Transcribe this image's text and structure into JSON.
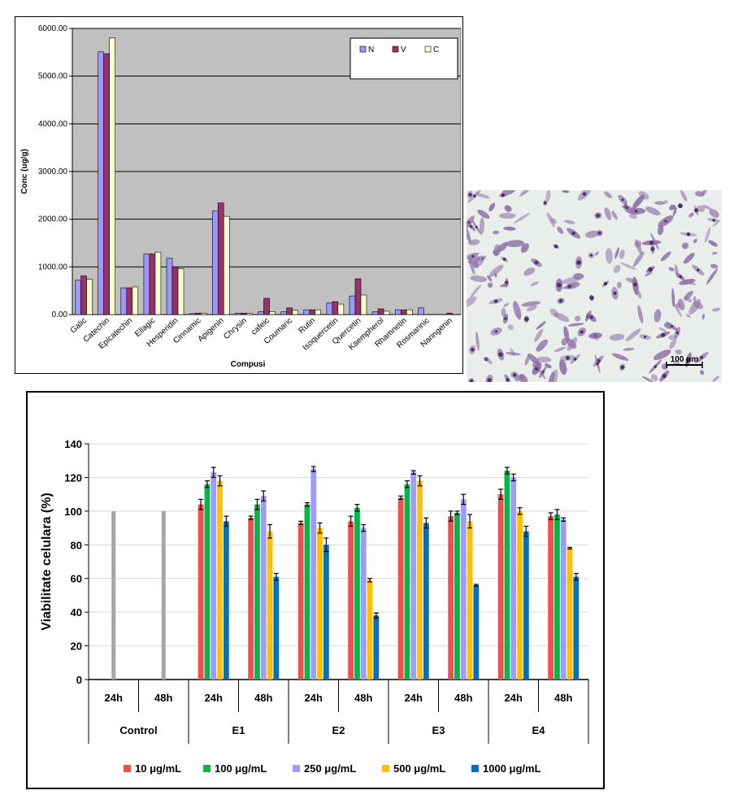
{
  "chart_data": [
    {
      "type": "bar",
      "title": "",
      "xlabel": "Compusi",
      "ylabel": "Conc (ug/g)",
      "ylim": [
        0,
        6000
      ],
      "yticks": [
        "0.00",
        "1000.00",
        "2000.00",
        "3000.00",
        "4000.00",
        "5000.00",
        "6000.00"
      ],
      "grid": true,
      "legend_position": "top-right",
      "categories": [
        "Galic",
        "Catechin",
        "Epicatechin",
        "Ellagic",
        "Hesperidin",
        "Cinnamic",
        "Apigenin",
        "Chrysin",
        "cafeic",
        "Coumaric",
        "Rutin",
        "Isoquercetin",
        "Quercetin",
        "Kaempherol",
        "Rhamnetin",
        "Rosmarinic",
        "Naringenin"
      ],
      "series": [
        {
          "name": "N",
          "color": "#9999ff",
          "values": [
            720,
            5510,
            560,
            1270,
            1180,
            20,
            2170,
            30,
            60,
            60,
            100,
            240,
            390,
            60,
            100,
            140,
            0
          ]
        },
        {
          "name": "V",
          "color": "#993366",
          "values": [
            810,
            5470,
            560,
            1270,
            1000,
            30,
            2340,
            30,
            340,
            140,
            100,
            270,
            750,
            120,
            100,
            0,
            30
          ]
        },
        {
          "name": "C",
          "color": "#ffffcc",
          "values": [
            740,
            5800,
            580,
            1310,
            960,
            30,
            2060,
            30,
            60,
            90,
            100,
            220,
            410,
            70,
            100,
            0,
            0
          ]
        }
      ]
    },
    {
      "type": "bar",
      "title": "",
      "xlabel": "",
      "ylabel": "Viabilitate celulara (%)",
      "ylim": [
        0,
        140
      ],
      "yticks": [
        "0",
        "20",
        "40",
        "60",
        "80",
        "100",
        "120",
        "140"
      ],
      "grid": true,
      "legend_position": "bottom",
      "groups": [
        {
          "label": "Control",
          "subgroups": [
            {
              "label": "24h",
              "values": [
                100
              ]
            },
            {
              "label": "48h",
              "values": [
                100
              ]
            }
          ],
          "color": "#a6a6a6"
        },
        {
          "label": "E1",
          "subgroups": [
            {
              "label": "24h",
              "values": [
                104,
                116,
                123,
                118,
                94
              ],
              "errors": [
                3,
                2,
                3,
                3,
                3
              ]
            },
            {
              "label": "48h",
              "values": [
                96,
                104,
                109,
                88,
                61
              ],
              "errors": [
                1,
                3,
                3,
                4,
                2
              ]
            }
          ]
        },
        {
          "label": "E2",
          "subgroups": [
            {
              "label": "24h",
              "values": [
                93,
                104,
                125,
                90,
                80
              ],
              "errors": [
                1,
                1,
                1.5,
                3,
                4
              ]
            },
            {
              "label": "48h",
              "values": [
                94,
                102,
                90,
                59,
                38
              ],
              "errors": [
                3,
                2,
                2,
                1,
                1.5
              ]
            }
          ]
        },
        {
          "label": "E3",
          "subgroups": [
            {
              "label": "24h",
              "values": [
                108,
                116,
                123,
                118,
                93
              ],
              "errors": [
                1,
                2,
                1,
                3,
                3
              ]
            },
            {
              "label": "48h",
              "values": [
                97,
                99,
                107,
                94,
                56
              ],
              "errors": [
                3,
                1,
                3,
                4,
                0.5
              ]
            }
          ]
        },
        {
          "label": "E4",
          "subgroups": [
            {
              "label": "24h",
              "values": [
                110,
                124,
                120,
                100,
                88
              ],
              "errors": [
                3,
                2,
                2,
                2,
                3
              ]
            },
            {
              "label": "48h",
              "values": [
                97,
                98,
                95,
                78,
                61
              ],
              "errors": [
                2,
                3,
                1,
                0.5,
                2
              ]
            }
          ]
        }
      ],
      "series": [
        {
          "name": "10 μg/mL",
          "color": "#f14e4e"
        },
        {
          "name": "100 μg/mL",
          "color": "#08b54a"
        },
        {
          "name": "250 μg/mL",
          "color": "#9d9cf7"
        },
        {
          "name": "500 μg/mL",
          "color": "#ffc000"
        },
        {
          "name": "1000 μg/mL",
          "color": "#0070c0"
        }
      ]
    }
  ],
  "micrograph": {
    "scale_bar_label": "100 μm",
    "description_colors": {
      "cell_fill": "#8f72a8",
      "cell_dark": "#4b3468",
      "background": "#e9eeea"
    }
  }
}
